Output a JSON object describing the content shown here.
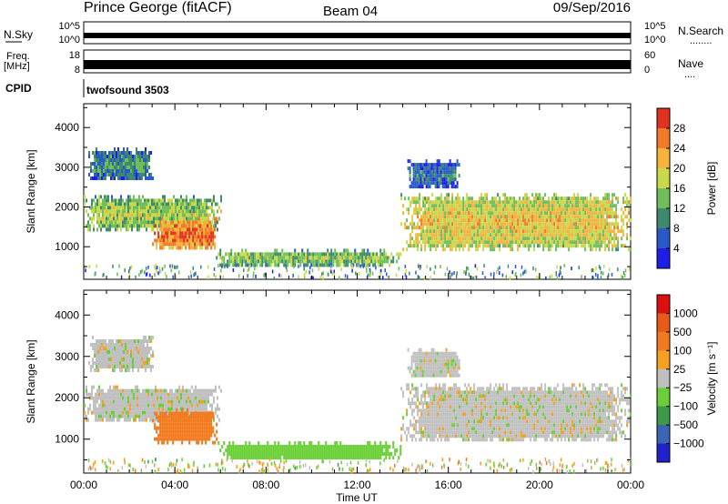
{
  "header": {
    "station": "Prince George (fitACF)",
    "beam": "Beam 04",
    "date": "09/Sep/2016"
  },
  "strips": {
    "nsky_label": "N.Sky",
    "nsky_tick_top": "10^5",
    "nsky_tick_bottom": "10^0",
    "nsearch_label": "N.Search",
    "nsearch_dots": "........",
    "freq_label_1": "Freq.",
    "freq_label_2": "[MHz]",
    "freq_tick_top": "18",
    "freq_tick_bottom": "8",
    "nave_label": "Nave",
    "nave_dots": "....",
    "nave_tick_top": "60",
    "nave_tick_bottom": "0",
    "cpid_label": "CPID",
    "cpid_value": "twofsound 3503"
  },
  "chart_data": [
    {
      "type": "heatmap",
      "id": "power",
      "ylabel": "Slant Range [km]",
      "xlim": [
        0,
        24
      ],
      "ylim": [
        180,
        4600
      ],
      "yticks": [
        1000,
        2000,
        3000,
        4000
      ],
      "colorbar": {
        "label": "Power [dB]",
        "range": [
          0,
          32
        ],
        "ticks": [
          "4",
          "8",
          "12",
          "16",
          "20",
          "24",
          "28"
        ],
        "colors": [
          "#1e1ee6",
          "#2a5ac8",
          "#3f8a6e",
          "#6fbe5a",
          "#c9d94b",
          "#f5b33a",
          "#f07a2a",
          "#e0321e"
        ]
      },
      "regions": [
        {
          "t": [
            0.0,
            6.0
          ],
          "r": [
            1450,
            2300
          ],
          "value": 14
        },
        {
          "t": [
            3.0,
            5.8
          ],
          "r": [
            950,
            1750
          ],
          "value": 24
        },
        {
          "t": [
            0.2,
            3.0
          ],
          "r": [
            2700,
            3500
          ],
          "value": 8
        },
        {
          "t": [
            5.8,
            13.9
          ],
          "r": [
            550,
            950
          ],
          "value": 13
        },
        {
          "t": [
            13.9,
            24.0
          ],
          "r": [
            950,
            2350
          ],
          "value": 18
        },
        {
          "t": [
            14.2,
            16.5
          ],
          "r": [
            2500,
            3200
          ],
          "value": 6
        }
      ]
    },
    {
      "type": "heatmap",
      "id": "velocity",
      "ylabel": "Slant Range [km]",
      "xlabel": "Time UT",
      "xlim": [
        0,
        24
      ],
      "ylim": [
        180,
        4600
      ],
      "yticks": [
        1000,
        2000,
        3000,
        4000
      ],
      "xticks": [
        "00:00",
        "04:00",
        "08:00",
        "12:00",
        "16:00",
        "20:00",
        "00:00"
      ],
      "colorbar": {
        "label": "Velocity [m s⁻¹]",
        "ticks": [
          "1000",
          "500",
          "100",
          "25",
          "−25",
          "−100",
          "−500",
          "−1000"
        ],
        "colors": [
          "#2222cc",
          "#3a64b4",
          "#3e9a4a",
          "#6ccd3a",
          "#c0c0c0",
          "#f5a020",
          "#f07a20",
          "#e85a18",
          "#dd1010"
        ]
      },
      "regions": [
        {
          "t": [
            0.0,
            6.0
          ],
          "r": [
            1450,
            2300
          ],
          "value": 0
        },
        {
          "t": [
            3.0,
            5.8
          ],
          "r": [
            950,
            1750
          ],
          "value": -150
        },
        {
          "t": [
            0.2,
            3.0
          ],
          "r": [
            2700,
            3500
          ],
          "value": 0
        },
        {
          "t": [
            5.8,
            13.9
          ],
          "r": [
            550,
            950
          ],
          "value": 60
        },
        {
          "t": [
            13.9,
            24.0
          ],
          "r": [
            950,
            2350
          ],
          "value": 0
        },
        {
          "t": [
            14.2,
            16.5
          ],
          "r": [
            2500,
            3200
          ],
          "value": 0
        }
      ]
    }
  ]
}
